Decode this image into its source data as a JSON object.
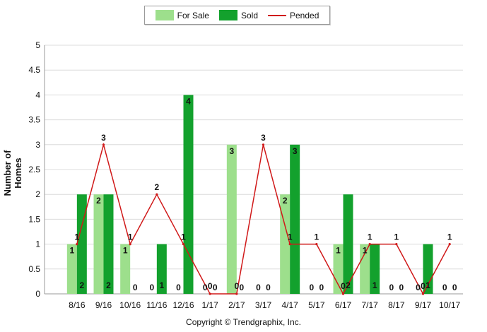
{
  "chart_data": {
    "type": "bar",
    "categories": [
      "8/16",
      "9/16",
      "10/16",
      "11/16",
      "12/16",
      "1/17",
      "2/17",
      "3/17",
      "4/17",
      "5/17",
      "6/17",
      "7/17",
      "8/17",
      "9/17",
      "10/17"
    ],
    "series": [
      {
        "name": "For Sale",
        "type": "bar",
        "color": "#9ddf8c",
        "values": [
          1,
          2,
          1,
          0,
          0,
          0,
          3,
          0,
          2,
          0,
          1,
          1,
          0,
          0,
          0
        ]
      },
      {
        "name": "Sold",
        "type": "bar",
        "color": "#13a12d",
        "values": [
          2,
          2,
          0,
          1,
          4,
          0,
          0,
          0,
          3,
          0,
          2,
          1,
          0,
          1,
          0
        ]
      },
      {
        "name": "Pended",
        "type": "line",
        "color": "#d01919",
        "values": [
          1,
          3,
          1,
          2,
          1,
          0,
          0,
          3,
          1,
          1,
          0,
          1,
          1,
          0,
          1
        ]
      }
    ],
    "ylabel": "Number of Homes",
    "ylim": [
      0,
      5
    ],
    "yticks": [
      "0",
      "0.5",
      "1",
      "1.5",
      "2",
      "2.5",
      "3",
      "3.5",
      "4",
      "4.5",
      "5"
    ],
    "grid": true,
    "legend": "top-center"
  },
  "copyright": "Copyright © Trendgraphix, Inc."
}
